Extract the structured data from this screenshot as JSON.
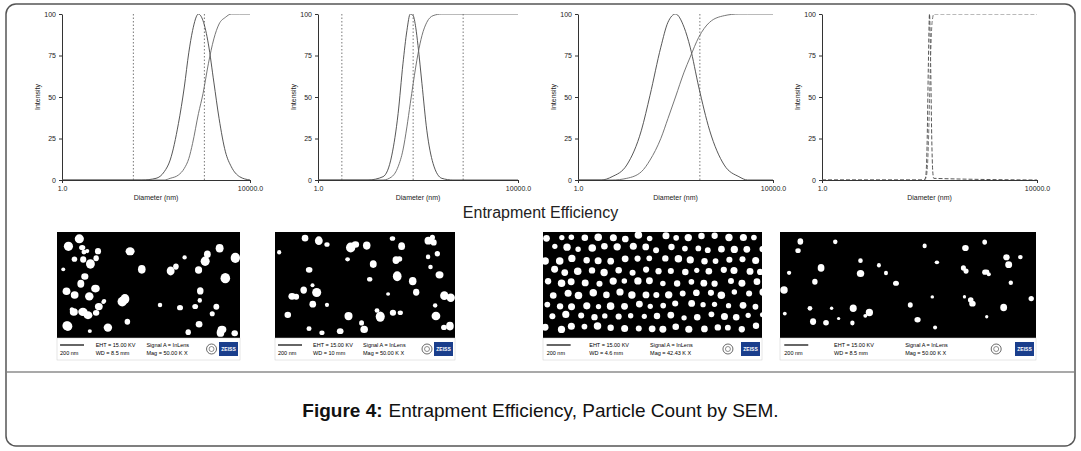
{
  "chart_data": [
    {
      "type": "line",
      "log": "x",
      "x_label": "Diameter (nm)",
      "y_label": "Intensity",
      "x": [
        1,
        50,
        100,
        150,
        200,
        300,
        400,
        500,
        600,
        800,
        1000,
        1300,
        1700,
        2200,
        3000,
        4000,
        6000,
        10000
      ],
      "series": [
        {
          "color": "#444444",
          "line_style": "solid",
          "values": [
            0,
            0,
            1,
            5,
            12,
            34,
            56,
            77,
            90,
            100,
            96,
            82,
            59,
            37,
            17,
            8,
            2,
            0
          ]
        },
        {
          "color": "#666666",
          "line_style": "solid",
          "values": [
            0,
            0,
            0,
            0,
            1,
            3,
            7,
            13,
            22,
            40,
            52,
            70,
            85,
            94,
            98,
            100,
            100,
            100
          ]
        }
      ],
      "reference_lines": [
        33,
        1070
      ],
      "xlim": [
        1,
        10000
      ],
      "xticks": [
        {
          "value": 1,
          "label": "1.0"
        },
        {
          "value": 10000,
          "label": "10000.0"
        }
      ],
      "ylim": [
        0,
        100
      ],
      "yticks": [
        0,
        25,
        50,
        75,
        100
      ]
    },
    {
      "type": "line",
      "log": "x",
      "x_label": "Diameter (nm)",
      "y_label": "Intensity",
      "x": [
        1,
        10,
        20,
        30,
        40,
        50,
        60,
        70,
        80,
        90,
        100,
        120,
        150,
        200,
        300,
        500,
        10000
      ],
      "series": [
        {
          "color": "#444444",
          "line_style": "solid",
          "values": [
            0,
            0,
            2,
            15,
            40,
            70,
            90,
            100,
            99,
            92,
            81,
            58,
            30,
            10,
            1,
            0,
            0
          ]
        },
        {
          "color": "#666666",
          "line_style": "solid",
          "values": [
            0,
            0,
            0,
            2,
            8,
            18,
            32,
            46,
            58,
            68,
            76,
            87,
            95,
            99,
            100,
            100,
            100
          ]
        }
      ],
      "reference_lines": [
        3,
        80,
        800
      ],
      "xlim": [
        1,
        10000
      ],
      "xticks": [
        {
          "value": 1,
          "label": "1.0"
        },
        {
          "value": 10000,
          "label": "10000.0"
        }
      ],
      "ylim": [
        0,
        100
      ],
      "yticks": [
        0,
        25,
        50,
        75,
        100
      ]
    },
    {
      "type": "line",
      "log": "x",
      "x_label": "Diameter (nm)",
      "y_label": "Intensity",
      "x": [
        1,
        3,
        5,
        10,
        20,
        30,
        50,
        70,
        100,
        150,
        200,
        300,
        500,
        1000,
        2000,
        3000,
        10000
      ],
      "series": [
        {
          "color": "#444444",
          "line_style": "solid",
          "values": [
            0,
            0,
            2,
            9,
            30,
            51,
            80,
            95,
            100,
            92,
            80,
            56,
            30,
            9,
            2,
            0,
            0
          ]
        },
        {
          "color": "#666666",
          "line_style": "solid",
          "values": [
            0,
            0,
            0,
            1,
            5,
            12,
            25,
            37,
            50,
            65,
            74,
            86,
            95,
            99,
            100,
            100,
            100
          ]
        }
      ],
      "reference_lines": [
        316
      ],
      "xlim": [
        1,
        10000
      ],
      "xticks": [
        {
          "value": 1,
          "label": "1.0"
        },
        {
          "value": 10000,
          "label": "10000.0"
        }
      ],
      "ylim": [
        0,
        100
      ],
      "yticks": [
        0,
        25,
        50,
        75,
        100
      ]
    },
    {
      "type": "line",
      "log": "x",
      "x_label": "Diameter (nm)",
      "y_label": "Intensity",
      "x": [
        1,
        80,
        85,
        90,
        95,
        100,
        105,
        110,
        115,
        120,
        10000
      ],
      "series": [
        {
          "color": "#444444",
          "line_style": "dashed",
          "values": [
            0,
            0,
            2,
            20,
            67,
            100,
            70,
            26,
            5,
            1,
            0
          ]
        },
        {
          "color": "#666666",
          "line_style": "dashed",
          "values": [
            0,
            0,
            1,
            5,
            20,
            48,
            75,
            92,
            98,
            100,
            100
          ]
        }
      ],
      "xlim": [
        1,
        10000
      ],
      "xticks": [
        {
          "value": 1,
          "label": "1.0"
        },
        {
          "value": 10000,
          "label": "10000.0"
        }
      ],
      "ylim": [
        0,
        100
      ],
      "yticks": [
        0,
        25,
        50,
        75,
        100
      ]
    }
  ],
  "section_label": "Entrapment Efficiency",
  "sem_images": [
    {
      "scale_bar": "200 nm",
      "eht": "EHT = 15.00 KV",
      "wd": "WD = 8.5 mm",
      "signal": "Signal A = InLens",
      "mag": "Mag = 50.00 K X",
      "brand": "ZEISS"
    },
    {
      "scale_bar": "200 nm",
      "eht": "EHT = 15.00 KV",
      "wd": "WD = 10 mm",
      "signal": "Signal A = InLens",
      "mag": "Mag = 50.00 K X",
      "brand": "ZEISS"
    },
    {
      "scale_bar": "200 nm",
      "eht": "EHT = 15.00 KV",
      "wd": "WD = 4.6 mm",
      "signal": "Signal A = InLens",
      "mag": "Mag = 42.43 K X",
      "brand": "ZEISS"
    },
    {
      "scale_bar": "200 nm",
      "eht": "EHT = 15.00 KV",
      "wd": "WD = 8.5 mm",
      "signal": "Signal A = InLens",
      "mag": "Mag = 50.00 K X",
      "brand": "ZEISS"
    }
  ],
  "caption": {
    "label": "Figure 4:",
    "text": "Entrapment Efficiency, Particle Count by SEM."
  }
}
